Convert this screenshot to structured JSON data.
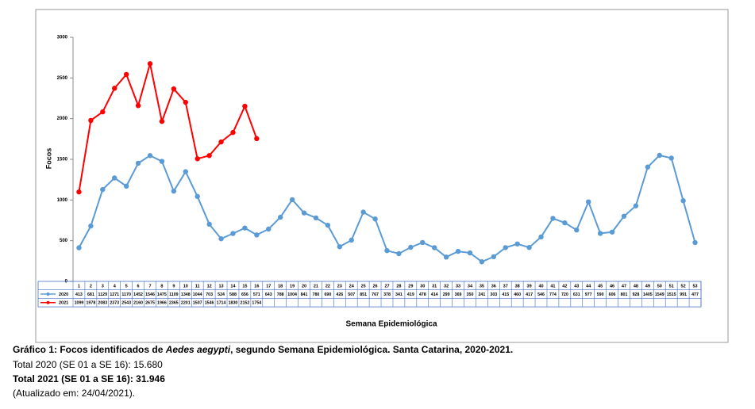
{
  "chart_data": {
    "type": "line",
    "y_label": "Focos",
    "x_label": "Semana Epidemiológica",
    "categories": [
      "1",
      "2",
      "3",
      "4",
      "5",
      "6",
      "7",
      "8",
      "9",
      "10",
      "11",
      "12",
      "13",
      "14",
      "15",
      "16",
      "17",
      "18",
      "19",
      "20",
      "21",
      "22",
      "23",
      "24",
      "25",
      "26",
      "27",
      "28",
      "29",
      "30",
      "31",
      "32",
      "33",
      "34",
      "35",
      "36",
      "37",
      "38",
      "39",
      "40",
      "41",
      "42",
      "43",
      "44",
      "45",
      "46",
      "47",
      "48",
      "49",
      "50",
      "51",
      "52",
      "53"
    ],
    "series": [
      {
        "name": "2020",
        "color": "#5b9bd5",
        "values": [
          413,
          681,
          1129,
          1271,
          1170,
          1452,
          1546,
          1475,
          1109,
          1348,
          1044,
          703,
          524,
          588,
          656,
          571,
          643,
          788,
          1004,
          841,
          780,
          690,
          426,
          507,
          851,
          767,
          378,
          341,
          419,
          478,
          414,
          299,
          369,
          350,
          241,
          303,
          415,
          460,
          417,
          546,
          774,
          720,
          631,
          977,
          590,
          606,
          801,
          928,
          1405,
          1549,
          1515,
          991,
          477
        ]
      },
      {
        "name": "2021",
        "color": "#ff0000",
        "values": [
          1099,
          1978,
          2083,
          2373,
          2543,
          2160,
          2675,
          1966,
          2365,
          2201,
          1507,
          1546,
          1714,
          1830,
          2152,
          1754,
          null,
          null,
          null,
          null,
          null,
          null,
          null,
          null,
          null,
          null,
          null,
          null,
          null,
          null,
          null,
          null,
          null,
          null,
          null,
          null,
          null,
          null,
          null,
          null,
          null,
          null,
          null,
          null,
          null,
          null,
          null,
          null,
          null,
          null,
          null,
          null,
          null
        ]
      }
    ],
    "ylim": [
      0,
      3000
    ],
    "yticks": [
      0,
      500,
      1000,
      1500,
      2000,
      2500,
      3000
    ]
  },
  "caption": {
    "label": "Gráfico 1: Focos identificados de ",
    "species": "Aedes aegypti",
    "rest": ", segundo Semana Epidemiológica. Santa Catarina, 2020-2021."
  },
  "totals": [
    "Total 2020 (SE 01 a SE 16): 15.680",
    "Total 2021 (SE 01 a SE 16): 31.946"
  ],
  "updated": "(Atualizado em: 24/04/2021)."
}
